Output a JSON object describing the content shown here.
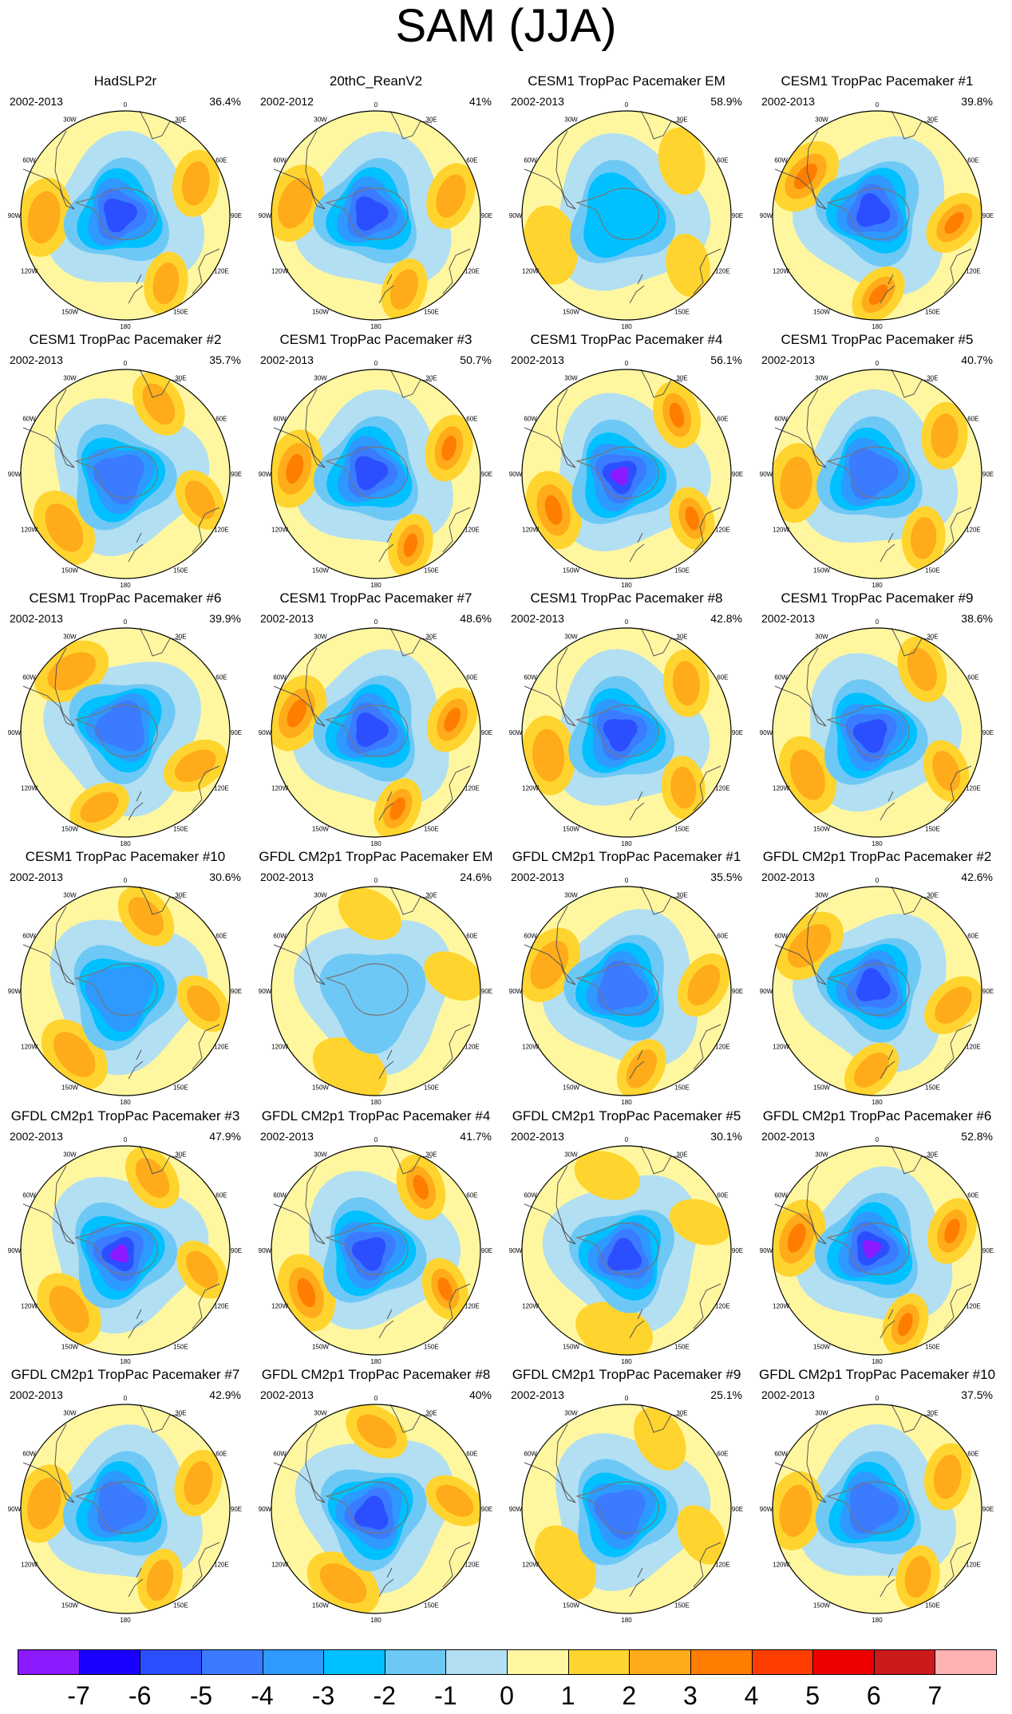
{
  "title": "SAM (JJA)",
  "lon_labels": [
    "0",
    "30E",
    "60E",
    "90E",
    "120E",
    "150E",
    "180",
    "150W",
    "120W",
    "90W",
    "60W",
    "30W"
  ],
  "panels": [
    {
      "title": "HadSLP2r",
      "period": "2002-2013",
      "pct": "36.4%",
      "strength": 1.0,
      "rot": 10,
      "pos": 0.8
    },
    {
      "title": "20thC_ReanV2",
      "period": "2002-2012",
      "pct": "41%",
      "strength": 1.0,
      "rot": 20,
      "pos": 0.9
    },
    {
      "title": "CESM1 TropPac Pacemaker EM",
      "period": "2002-2013",
      "pct": "58.9%",
      "strength": 0.45,
      "rot": -10,
      "pos": 0.3
    },
    {
      "title": "CESM1 TropPac Pacemaker #1",
      "period": "2002-2013",
      "pct": "39.8%",
      "strength": 1.0,
      "rot": 40,
      "pos": 1.0
    },
    {
      "title": "CESM1 TropPac Pacemaker #2",
      "period": "2002-2013",
      "pct": "35.7%",
      "strength": 0.8,
      "rot": -30,
      "pos": 0.9
    },
    {
      "title": "CESM1 TropPac Pacemaker #3",
      "period": "2002-2013",
      "pct": "50.7%",
      "strength": 1.1,
      "rot": 15,
      "pos": 1.1
    },
    {
      "title": "CESM1 TropPac Pacemaker #4",
      "period": "2002-2013",
      "pct": "56.1%",
      "strength": 1.3,
      "rot": -15,
      "pos": 1.2
    },
    {
      "title": "CESM1 TropPac Pacemaker #5",
      "period": "2002-2013",
      "pct": "40.7%",
      "strength": 0.8,
      "rot": 5,
      "pos": 0.7
    },
    {
      "title": "CESM1 TropPac Pacemaker #6",
      "period": "2002-2013",
      "pct": "39.9%",
      "strength": 0.9,
      "rot": 60,
      "pos": 0.6
    },
    {
      "title": "CESM1 TropPac Pacemaker #7",
      "period": "2002-2013",
      "pct": "48.6%",
      "strength": 1.0,
      "rot": 25,
      "pos": 1.1
    },
    {
      "title": "CESM1 TropPac Pacemaker #8",
      "period": "2002-2013",
      "pct": "42.8%",
      "strength": 1.0,
      "rot": -5,
      "pos": 0.8
    },
    {
      "title": "CESM1 TropPac Pacemaker #9",
      "period": "2002-2013",
      "pct": "38.6%",
      "strength": 1.1,
      "rot": -20,
      "pos": 0.8
    },
    {
      "title": "CESM1 TropPac Pacemaker #10",
      "period": "2002-2013",
      "pct": "30.6%",
      "strength": 0.7,
      "rot": -40,
      "pos": 0.8
    },
    {
      "title": "GFDL CM2p1 TropPac Pacemaker EM",
      "period": "2002-2013",
      "pct": "24.6%",
      "strength": 0.25,
      "rot": -60,
      "pos": 0.4
    },
    {
      "title": "GFDL CM2p1 TropPac Pacemaker #1",
      "period": "2002-2013",
      "pct": "35.5%",
      "strength": 0.9,
      "rot": 30,
      "pos": 0.6
    },
    {
      "title": "GFDL CM2p1 TropPac Pacemaker #2",
      "period": "2002-2013",
      "pct": "42.6%",
      "strength": 1.0,
      "rot": 45,
      "pos": 0.7
    },
    {
      "title": "GFDL CM2p1 TropPac Pacemaker #3",
      "period": "2002-2013",
      "pct": "47.9%",
      "strength": 1.2,
      "rot": -35,
      "pos": 0.9
    },
    {
      "title": "GFDL CM2p1 TropPac Pacemaker #4",
      "period": "2002-2013",
      "pct": "41.7%",
      "strength": 1.0,
      "rot": -20,
      "pos": 1.0
    },
    {
      "title": "GFDL CM2p1 TropPac Pacemaker #5",
      "period": "2002-2013",
      "pct": "30.1%",
      "strength": 1.1,
      "rot": -70,
      "pos": 0.5
    },
    {
      "title": "GFDL CM2p1 TropPac Pacemaker #6",
      "period": "2002-2013",
      "pct": "52.8%",
      "strength": 1.2,
      "rot": 20,
      "pos": 1.1
    },
    {
      "title": "GFDL CM2p1 TropPac Pacemaker #7",
      "period": "2002-2013",
      "pct": "42.9%",
      "strength": 0.9,
      "rot": 15,
      "pos": 0.7
    },
    {
      "title": "GFDL CM2p1 TropPac Pacemaker #8",
      "period": "2002-2013",
      "pct": "40%",
      "strength": 1.1,
      "rot": -55,
      "pos": 0.6
    },
    {
      "title": "GFDL CM2p1 TropPac Pacemaker #9",
      "period": "2002-2013",
      "pct": "25.1%",
      "strength": 0.8,
      "rot": -30,
      "pos": 0.5
    },
    {
      "title": "GFDL CM2p1 TropPac Pacemaker #10",
      "period": "2002-2013",
      "pct": "37.5%",
      "strength": 0.9,
      "rot": 10,
      "pos": 0.7
    }
  ],
  "colorbar": {
    "colors": [
      "#8c1aff",
      "#1a00ff",
      "#2b4fff",
      "#3b7bff",
      "#2e99ff",
      "#00c0ff",
      "#6ec8f5",
      "#b3dff2",
      "#fff7a0",
      "#ffd42e",
      "#ffab1a",
      "#ff7d00",
      "#ff3d00",
      "#ee0000",
      "#cc1a1a",
      "#ffb3b3"
    ],
    "labels": [
      "-7",
      "-6",
      "-5",
      "-4",
      "-3",
      "-2",
      "-1",
      "0",
      "1",
      "2",
      "3",
      "4",
      "5",
      "6",
      "7"
    ]
  }
}
